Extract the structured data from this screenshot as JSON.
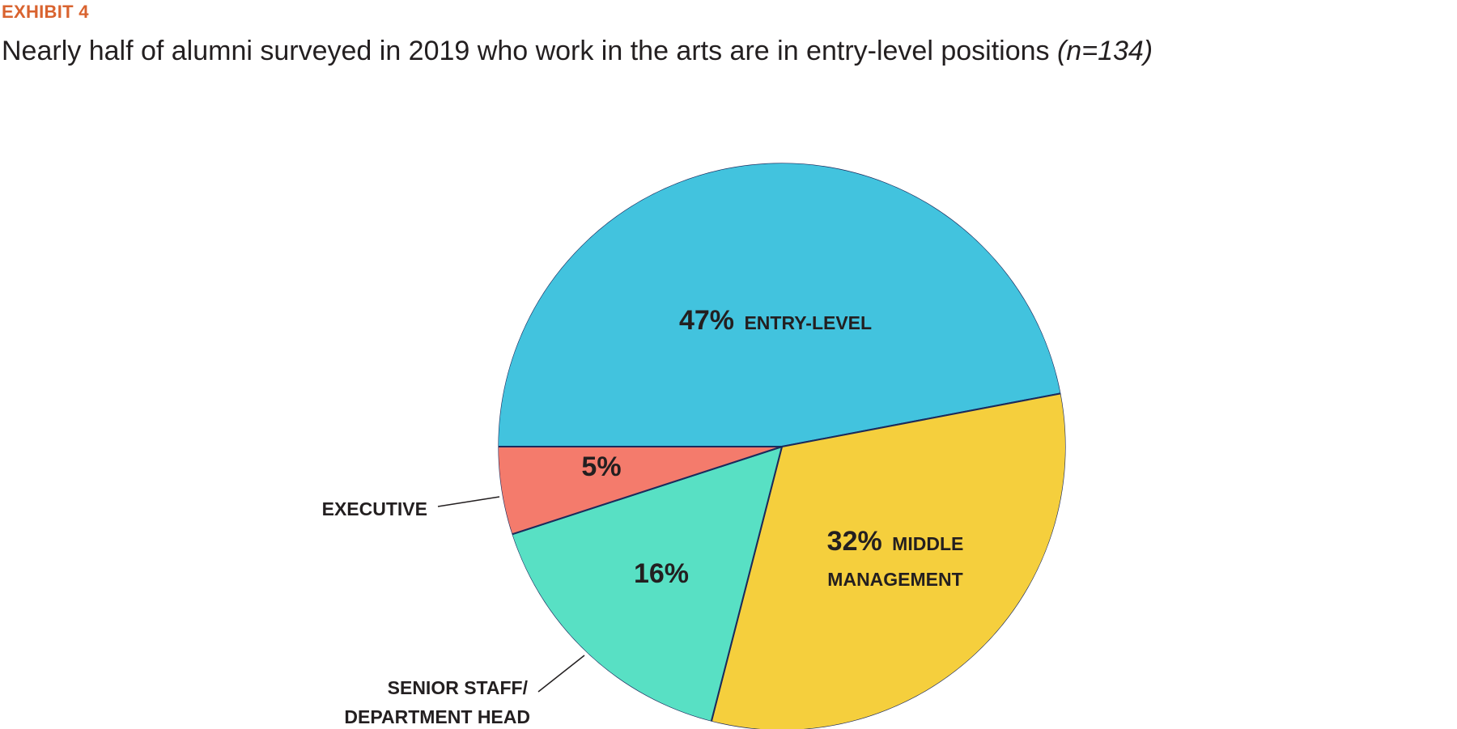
{
  "exhibit_label": "EXHIBIT 4",
  "title": "Nearly half of alumni surveyed in 2019 who work in the arts are in entry-level positions",
  "title_note": "(n=134)",
  "chart_data": {
    "type": "pie",
    "title": "Nearly half of alumni surveyed in 2019 who work in the arts are in entry-level positions",
    "n": 134,
    "slices": [
      {
        "name": "ENTRY-LEVEL",
        "value": 47,
        "percent_label": "47%",
        "category_label": "ENTRY-LEVEL",
        "color": "#42c3de"
      },
      {
        "name": "MIDDLE MANAGEMENT",
        "value": 32,
        "percent_label": "32%",
        "category_label": "MIDDLE MANAGEMENT",
        "color": "#f5cf3d"
      },
      {
        "name": "SENIOR STAFF/ DEPARTMENT HEAD",
        "value": 16,
        "percent_label": "16%",
        "category_label": "SENIOR STAFF/ DEPARTMENT HEAD",
        "color": "#58e0c4"
      },
      {
        "name": "EXECUTIVE",
        "value": 5,
        "percent_label": "5%",
        "category_label": "EXECUTIVE",
        "color": "#f47b6c"
      }
    ],
    "slice_border_color": "#1b2a5c"
  }
}
